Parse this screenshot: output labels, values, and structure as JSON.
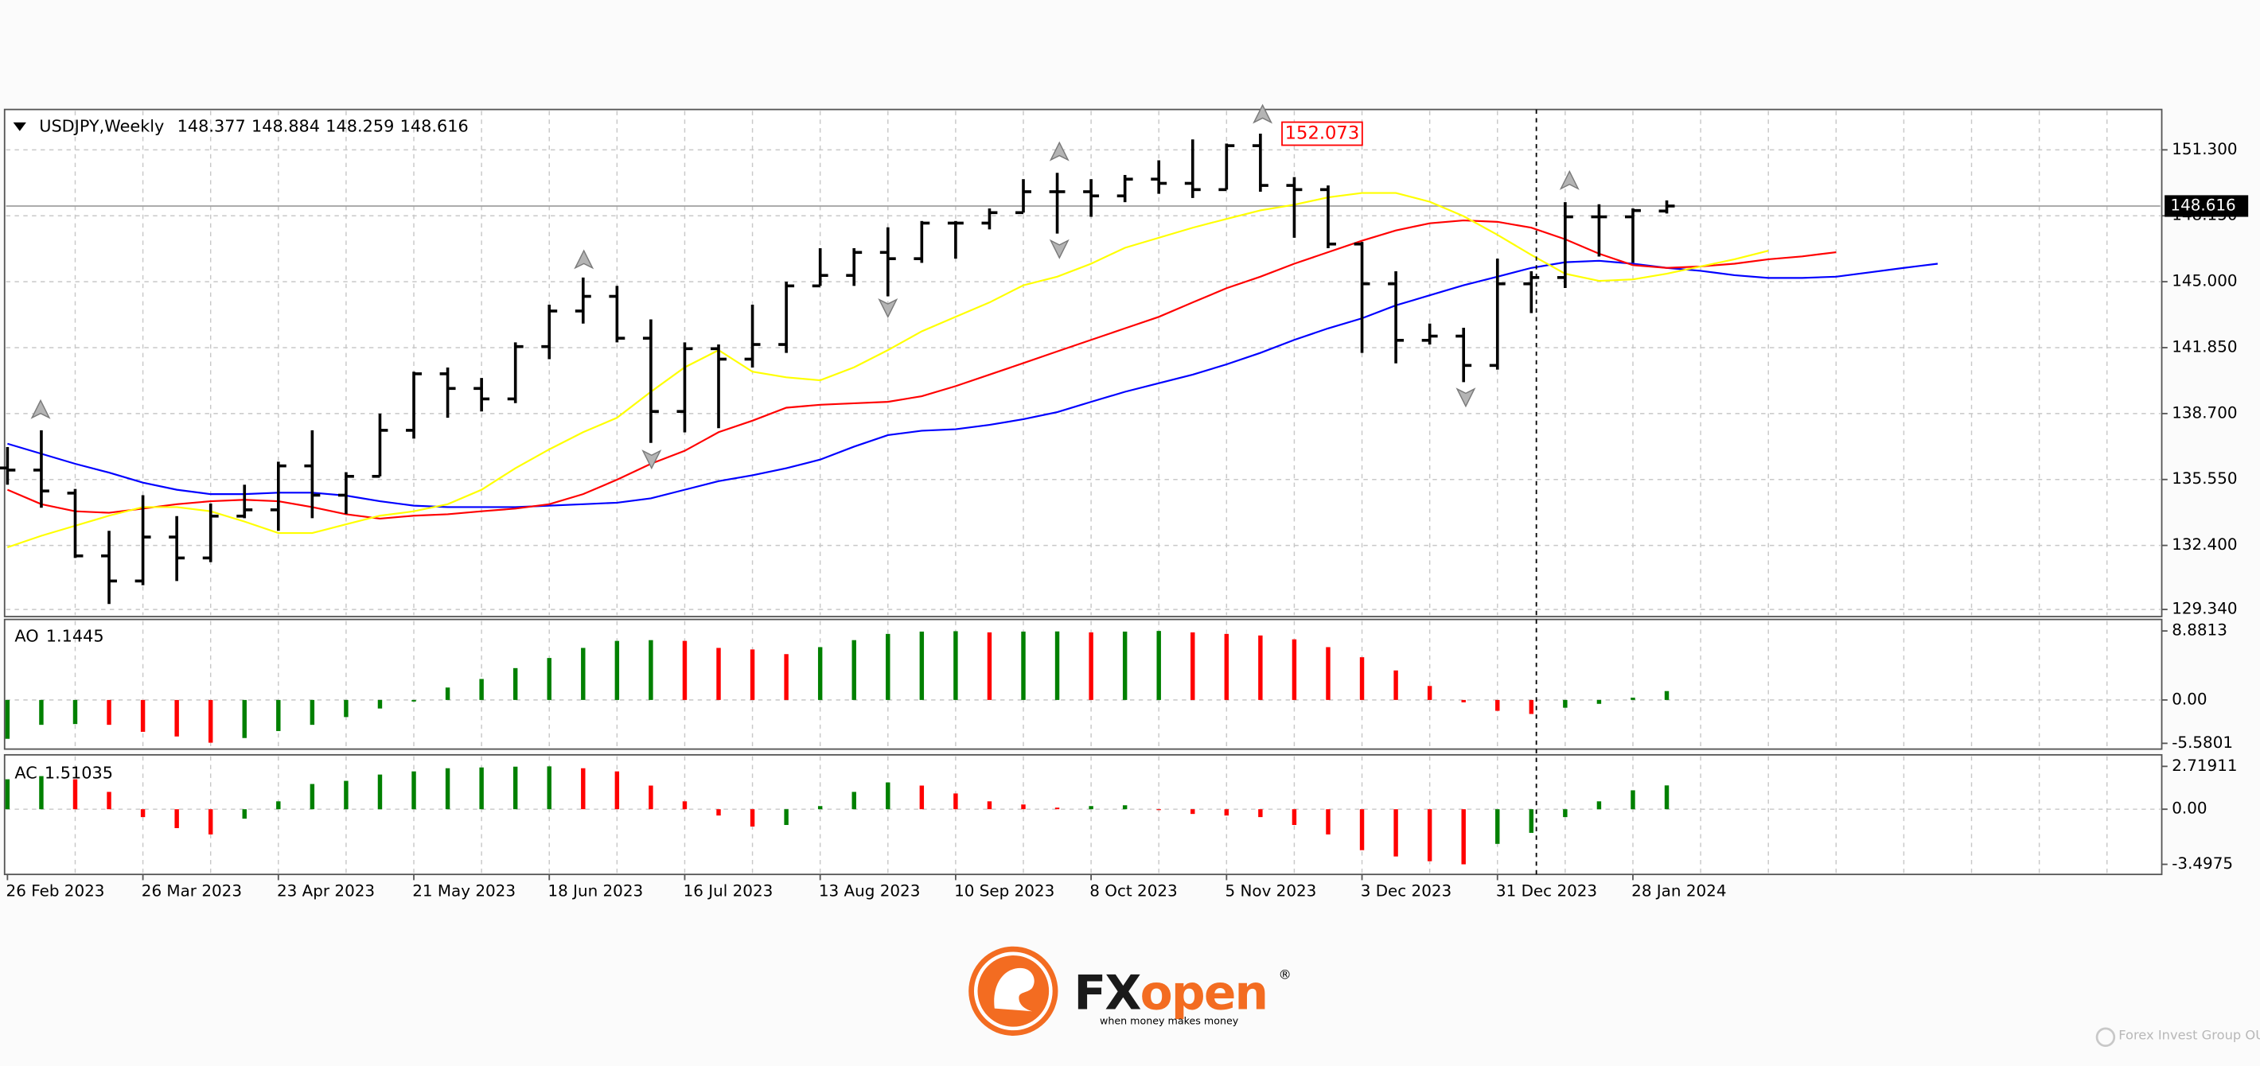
{
  "chart_data": {
    "type": "ohlc",
    "symbol": "USDJPY,Weekly",
    "categories": [
      "26 Feb 2023",
      null,
      null,
      null,
      "26 Mar 2023",
      null,
      null,
      null,
      "23 Apr 2023",
      null,
      null,
      null,
      "21 May 2023",
      null,
      null,
      null,
      "18 Jun 2023",
      null,
      null,
      null,
      "16 Jul 2023",
      null,
      null,
      null,
      "13 Aug 2023",
      null,
      null,
      null,
      "10 Sep 2023",
      null,
      null,
      null,
      "8 Oct 2023",
      null,
      null,
      null,
      "5 Nov 2023",
      null,
      null,
      null,
      "3 Dec 2023",
      null,
      null,
      null,
      "31 Dec 2023",
      null,
      null,
      null,
      "28 Jan 2024",
      null,
      null,
      null,
      null,
      null,
      null,
      null,
      null,
      null
    ],
    "open": [
      136.1,
      136.0,
      134.9,
      131.9,
      130.7,
      132.8,
      131.8,
      133.8,
      134.1,
      136.2,
      134.8,
      135.7,
      137.9,
      140.6,
      139.9,
      139.4,
      141.9,
      143.6,
      144.3,
      142.3,
      138.8,
      141.8,
      141.3,
      142.0,
      144.8,
      145.3,
      146.4,
      146.1,
      147.8,
      147.8,
      148.3,
      149.3,
      149.3,
      149.1,
      149.9,
      149.7,
      149.4,
      151.5,
      149.6,
      149.4,
      146.8,
      144.9,
      142.2,
      142.4,
      141.0,
      144.9,
      145.2,
      148.1,
      148.1,
      148.377,
      null,
      null,
      null,
      null,
      null,
      null,
      null,
      null
    ],
    "high": [
      137.1,
      137.9,
      135.1,
      133.1,
      134.8,
      133.8,
      134.4,
      135.3,
      136.4,
      137.9,
      135.9,
      138.7,
      140.7,
      140.9,
      140.4,
      142.1,
      143.9,
      145.2,
      144.8,
      143.2,
      142.1,
      142.0,
      143.9,
      145.0,
      146.6,
      146.6,
      147.6,
      147.9,
      147.9,
      148.5,
      149.9,
      150.2,
      149.9,
      150.1,
      150.8,
      151.8,
      151.6,
      152.073,
      150.0,
      149.6,
      146.9,
      145.5,
      143.0,
      142.8,
      146.1,
      145.5,
      148.8,
      148.7,
      148.5,
      148.884,
      null,
      null,
      null,
      null,
      null,
      null,
      null,
      null
    ],
    "low": [
      135.3,
      134.2,
      131.8,
      129.6,
      130.5,
      130.7,
      131.6,
      133.7,
      133.1,
      133.7,
      133.9,
      135.7,
      137.5,
      138.5,
      138.8,
      139.2,
      141.3,
      143.0,
      142.1,
      137.3,
      137.8,
      138.0,
      140.9,
      141.6,
      144.8,
      144.8,
      144.3,
      145.9,
      146.1,
      147.5,
      148.3,
      147.3,
      148.1,
      148.8,
      149.2,
      149.0,
      149.4,
      149.3,
      147.1,
      146.6,
      141.6,
      141.1,
      142.0,
      140.2,
      140.8,
      143.5,
      144.7,
      146.2,
      145.9,
      148.259,
      null,
      null,
      null,
      null,
      null,
      null,
      null,
      null
    ],
    "close": [
      136.0,
      135.0,
      131.9,
      130.7,
      132.8,
      131.8,
      133.8,
      134.1,
      136.2,
      134.8,
      135.7,
      137.9,
      140.6,
      139.9,
      139.4,
      141.9,
      143.6,
      144.3,
      142.3,
      138.8,
      141.8,
      141.3,
      142.0,
      144.8,
      145.3,
      146.4,
      146.1,
      147.8,
      147.8,
      148.3,
      149.3,
      149.3,
      149.1,
      149.9,
      149.7,
      149.4,
      151.5,
      149.6,
      149.4,
      146.8,
      144.9,
      142.2,
      142.4,
      141.0,
      144.9,
      145.2,
      148.1,
      148.1,
      148.4,
      148.616,
      null,
      null,
      null,
      null,
      null,
      null,
      null,
      null
    ],
    "color": "#000000",
    "series": [
      {
        "color": "#0000ff",
        "values": [
          137.26,
          136.78,
          136.3,
          135.88,
          135.4,
          135.06,
          134.85,
          134.85,
          134.92,
          134.92,
          134.78,
          134.51,
          134.3,
          134.23,
          134.23,
          134.23,
          134.3,
          134.37,
          134.44,
          134.65,
          135.06,
          135.47,
          135.75,
          136.09,
          136.5,
          137.12,
          137.67,
          137.88,
          137.95,
          138.16,
          138.43,
          138.77,
          139.26,
          139.74,
          140.15,
          140.56,
          141.05,
          141.6,
          142.22,
          142.77,
          143.25,
          143.87,
          144.35,
          144.83,
          145.24,
          145.66,
          145.93,
          146.0,
          145.86,
          145.66,
          145.52,
          145.31,
          145.18,
          145.18,
          145.24,
          145.45,
          145.66,
          145.86
        ]
      },
      {
        "color": "#ff0000",
        "values": [
          135.06,
          134.37,
          134.03,
          133.96,
          134.16,
          134.37,
          134.51,
          134.58,
          134.51,
          134.23,
          133.89,
          133.68,
          133.82,
          133.89,
          134.03,
          134.16,
          134.37,
          134.85,
          135.54,
          136.3,
          136.92,
          137.81,
          138.36,
          138.98,
          139.12,
          139.19,
          139.26,
          139.53,
          140.01,
          140.56,
          141.11,
          141.67,
          142.22,
          142.77,
          143.32,
          144.01,
          144.69,
          145.24,
          145.86,
          146.41,
          146.96,
          147.45,
          147.79,
          147.93,
          147.86,
          147.58,
          147.03,
          146.34,
          145.79,
          145.66,
          145.73,
          145.86,
          146.07,
          146.21,
          146.41,
          null,
          null,
          null
        ]
      },
      {
        "color": "#ffff00",
        "values": [
          132.31,
          132.86,
          133.34,
          133.82,
          134.23,
          134.23,
          134.03,
          133.54,
          132.99,
          132.99,
          133.41,
          133.82,
          134.03,
          134.37,
          135.06,
          136.09,
          136.99,
          137.81,
          138.5,
          139.74,
          140.91,
          141.73,
          140.7,
          140.43,
          140.29,
          140.91,
          141.73,
          142.63,
          143.32,
          144.01,
          144.83,
          145.24,
          145.86,
          146.62,
          147.1,
          147.58,
          148.0,
          148.41,
          148.68,
          149.03,
          149.24,
          149.24,
          148.82,
          148.13,
          147.24,
          146.28,
          145.38,
          145.04,
          145.11,
          145.38,
          145.73,
          146.07,
          146.48,
          null,
          null,
          null,
          null,
          null
        ]
      }
    ],
    "ylim": [
      129.07,
      153.16
    ],
    "yticks": [
      {
        "value": 151.3,
        "label": "151.300"
      },
      {
        "value": 148.15,
        "label": "148.150"
      },
      {
        "value": 145,
        "label": "145.000"
      },
      {
        "value": 141.85,
        "label": "141.850"
      },
      {
        "value": 138.7,
        "label": "138.700"
      },
      {
        "value": 135.55,
        "label": "135.550"
      },
      {
        "value": 132.4,
        "label": "132.400"
      },
      {
        "value": 129.34,
        "label": "129.340"
      }
    ],
    "grid": true,
    "indicators": [
      {
        "label": "AO",
        "up_color": "#008000",
        "down_color": "#ff0000",
        "values": [
          -5.0,
          -3.2,
          -3.1,
          -3.2,
          -4.1,
          -4.7,
          -5.5,
          -4.9,
          -4.0,
          -3.2,
          -2.2,
          -1.1,
          -0.2,
          1.6,
          2.7,
          4.1,
          5.4,
          6.7,
          7.6,
          7.7,
          7.6,
          6.7,
          6.5,
          5.9,
          6.8,
          7.7,
          8.5,
          8.8,
          8.85,
          8.7,
          8.8,
          8.82,
          8.7,
          8.8,
          8.8813,
          8.7,
          8.5,
          8.3,
          7.8,
          6.8,
          5.5,
          3.8,
          1.8,
          -0.3,
          -1.4,
          -1.8,
          -1.0,
          -0.5,
          0.3,
          1.1445,
          null,
          null,
          null,
          null,
          null,
          null,
          null,
          null
        ],
        "ylim": [
          -5.5801,
          8.8813
        ],
        "yticks": [
          8.8813,
          {
            "value": 0,
            "label": "0.00"
          },
          -5.5801
        ]
      },
      {
        "label": "AC",
        "up_color": "#008000",
        "down_color": "#ff0000",
        "values": [
          1.9,
          2.1,
          1.9,
          1.1,
          -0.5,
          -1.2,
          -1.6,
          -0.6,
          0.5,
          1.6,
          1.8,
          2.2,
          2.4,
          2.6,
          2.65,
          2.7,
          2.71911,
          2.6,
          2.4,
          1.5,
          0.5,
          -0.4,
          -1.1,
          -1.0,
          0.2,
          1.1,
          1.7,
          1.5,
          1.0,
          0.5,
          0.3,
          0.1,
          0.2,
          0.25,
          0.0,
          -0.3,
          -0.4,
          -0.5,
          -1.0,
          -1.6,
          -2.6,
          -3.0,
          -3.3,
          -3.4975,
          -2.2,
          -1.5,
          -0.5,
          0.5,
          1.2,
          1.51035,
          null,
          null,
          null,
          null,
          null,
          null,
          null,
          null
        ],
        "ylim": [
          -3.4975,
          2.71911
        ],
        "yticks": [
          2.71911,
          {
            "value": 0,
            "label": "0.00"
          },
          -3.4975
        ]
      }
    ]
  },
  "branding": {
    "logo_fx": "FX",
    "logo_open": "open",
    "registered": "®",
    "tagline": "when money makes money",
    "footer": "Forex Invest Group OU"
  }
}
